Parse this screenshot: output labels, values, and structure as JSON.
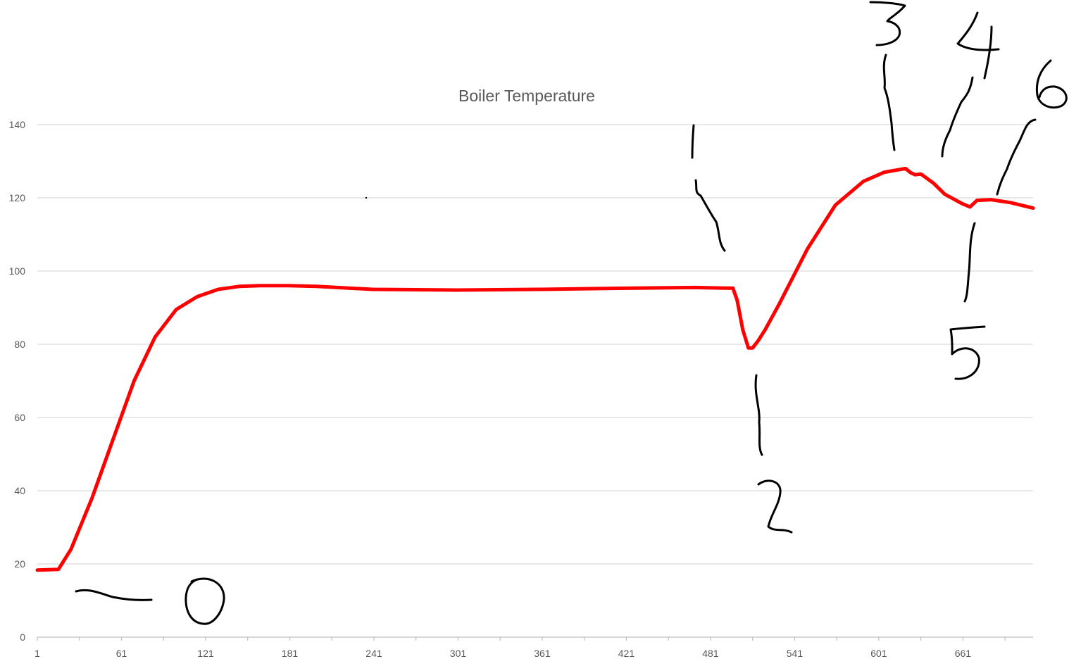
{
  "chart_data": {
    "type": "line",
    "title": "Boiler Temperature",
    "xlabel": "",
    "ylabel": "",
    "xlim": [
      1,
      711
    ],
    "ylim": [
      0,
      140
    ],
    "x_ticks": [
      1,
      61,
      121,
      181,
      241,
      301,
      361,
      421,
      481,
      541,
      601,
      661
    ],
    "y_ticks": [
      0,
      20,
      40,
      60,
      80,
      100,
      120,
      140
    ],
    "grid": true,
    "legend": "none",
    "series": [
      {
        "color": "#ff0000",
        "x": [
          1,
          16,
          25,
          40,
          55,
          70,
          85,
          100,
          115,
          130,
          145,
          160,
          180,
          200,
          240,
          300,
          360,
          420,
          470,
          497,
          500,
          504,
          508,
          511,
          515,
          520,
          530,
          550,
          570,
          590,
          605,
          620,
          624,
          627,
          631,
          640,
          648,
          660,
          666,
          671,
          681,
          695,
          711
        ],
        "y": [
          18.3,
          18.5,
          24,
          38,
          54,
          70,
          82,
          89.5,
          93,
          95,
          95.8,
          96,
          96,
          95.8,
          95,
          94.8,
          95,
          95.3,
          95.5,
          95.3,
          92,
          84,
          79,
          79,
          81,
          84,
          91,
          106,
          118,
          124.5,
          127,
          128,
          126.8,
          126.3,
          126.5,
          124,
          121,
          118.5,
          117.5,
          119.3,
          119.5,
          118.7,
          117.2
        ]
      }
    ],
    "annotations": [
      "0",
      "1",
      "2",
      "3",
      "4",
      "5",
      "6"
    ]
  }
}
